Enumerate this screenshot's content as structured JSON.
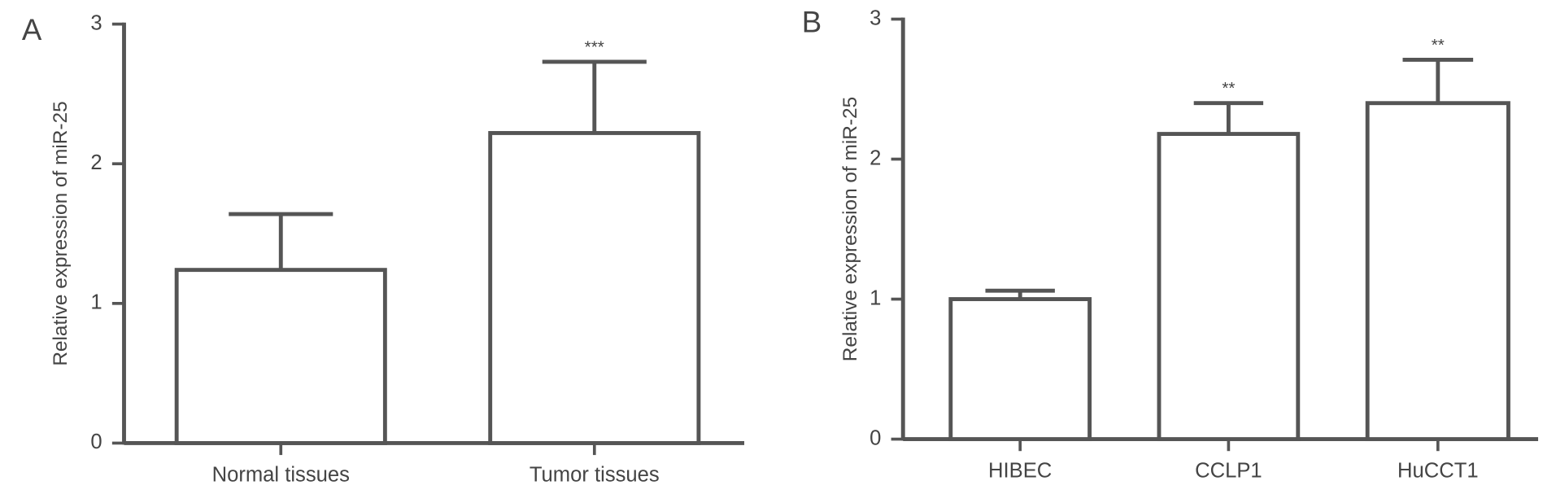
{
  "chart_data": [
    {
      "type": "bar",
      "panel_label": "A",
      "y_label": "Relative expression of miR-25",
      "categories": [
        "Normal tissues",
        "Tumor tissues"
      ],
      "values": [
        1.24,
        2.22
      ],
      "errors": [
        0.4,
        0.51
      ],
      "annotations": [
        null,
        "***"
      ],
      "color": "#ffffff",
      "edge_color": "#555555",
      "ylim": [
        0,
        3
      ],
      "yticks": [
        0,
        1,
        2,
        3
      ]
    },
    {
      "type": "bar",
      "panel_label": "B",
      "y_label": "Relative expression of miR-25",
      "categories": [
        "HIBEC",
        "CCLP1",
        "HuCCT1"
      ],
      "values": [
        1.0,
        2.18,
        2.4
      ],
      "errors": [
        0.06,
        0.22,
        0.31
      ],
      "annotations": [
        null,
        "**",
        "**"
      ],
      "color": "#ffffff",
      "edge_color": "#555555",
      "ylim": [
        0,
        3
      ],
      "yticks": [
        0,
        1,
        2,
        3
      ]
    }
  ]
}
